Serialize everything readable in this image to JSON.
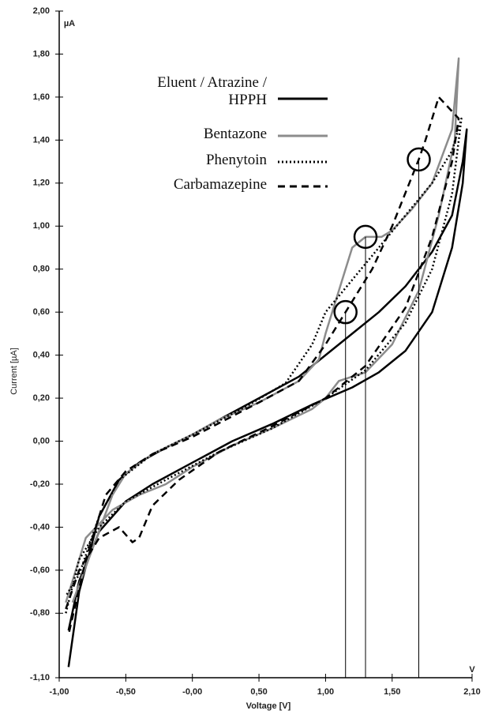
{
  "chart_data": {
    "type": "line",
    "xlabel": "Voltage [V]",
    "ylabel": "Current [µA]",
    "x_unit": "V",
    "y_unit": "µA",
    "xlim": [
      -1.0,
      2.1
    ],
    "ylim": [
      -1.1,
      2.0
    ],
    "xticks": [
      {
        "value": -1.0,
        "label": "-1,00"
      },
      {
        "value": -0.5,
        "label": "-0,50"
      },
      {
        "value": 0,
        "label": "-0,00"
      },
      {
        "value": 0.5,
        "label": "0,50"
      },
      {
        "value": 1.0,
        "label": "1,00"
      },
      {
        "value": 1.5,
        "label": "1,50"
      },
      {
        "value": 2.1,
        "label": "2,10"
      }
    ],
    "yticks": [
      {
        "value": -1.1,
        "label": "-1,10"
      },
      {
        "value": -0.8,
        "label": "-0,80"
      },
      {
        "value": -0.6,
        "label": "-0,60"
      },
      {
        "value": -0.4,
        "label": "-0,40"
      },
      {
        "value": -0.2,
        "label": "-0,20"
      },
      {
        "value": 0,
        "label": "0,00"
      },
      {
        "value": 0.2,
        "label": "0,20"
      },
      {
        "value": 0.4,
        "label": "0,40"
      },
      {
        "value": 0.6,
        "label": "0,60"
      },
      {
        "value": 0.8,
        "label": "0,80"
      },
      {
        "value": 1.0,
        "label": "1,00"
      },
      {
        "value": 1.2,
        "label": "1,20"
      },
      {
        "value": 1.4,
        "label": "1,40"
      },
      {
        "value": 1.6,
        "label": "1,60"
      },
      {
        "value": 1.8,
        "label": "1,80"
      },
      {
        "value": 2.0,
        "label": "2,00"
      }
    ],
    "series": [
      {
        "name": "Eluent / Atrazine / HPPH",
        "color": "#000000",
        "dash": "solid",
        "x": [
          -0.93,
          -0.85,
          -0.7,
          -0.5,
          -0.3,
          0,
          0.3,
          0.6,
          0.9,
          1.2,
          1.4,
          1.6,
          1.8,
          1.95,
          2.03,
          2.06,
          2.03,
          1.95,
          1.8,
          1.6,
          1.4,
          1.2,
          1.0,
          0.8,
          0.5,
          0.2,
          0,
          -0.2,
          -0.4,
          -0.55,
          -0.7,
          -0.85,
          -0.93
        ],
        "values": [
          -0.88,
          -0.65,
          -0.42,
          -0.28,
          -0.2,
          -0.1,
          0.0,
          0.08,
          0.17,
          0.25,
          0.32,
          0.42,
          0.6,
          0.9,
          1.2,
          1.45,
          1.3,
          1.05,
          0.88,
          0.72,
          0.6,
          0.5,
          0.4,
          0.3,
          0.2,
          0.1,
          0.03,
          -0.03,
          -0.1,
          -0.18,
          -0.35,
          -0.7,
          -1.05
        ]
      },
      {
        "name": "Bentazone",
        "color": "#8c8c8c",
        "dash": "solid",
        "x": [
          -0.95,
          -0.8,
          -0.6,
          -0.4,
          -0.2,
          0,
          0.3,
          0.6,
          0.9,
          1.0,
          1.1,
          1.2,
          1.3,
          1.5,
          1.7,
          1.85,
          1.97,
          2.0,
          1.95,
          1.8,
          1.65,
          1.5,
          1.42,
          1.3,
          1.2,
          1.1,
          1.0,
          0.95,
          0.8,
          0.5,
          0.2,
          0,
          -0.3,
          -0.5,
          -0.6,
          -0.75,
          -0.9
        ],
        "values": [
          -0.75,
          -0.45,
          -0.32,
          -0.25,
          -0.2,
          -0.12,
          -0.02,
          0.06,
          0.15,
          0.2,
          0.28,
          0.3,
          0.32,
          0.45,
          0.7,
          1.05,
          1.4,
          1.78,
          1.45,
          1.2,
          1.08,
          0.98,
          0.95,
          0.95,
          0.9,
          0.7,
          0.5,
          0.38,
          0.28,
          0.18,
          0.1,
          0.03,
          -0.06,
          -0.15,
          -0.25,
          -0.5,
          -0.75
        ]
      },
      {
        "name": "Phenytoin",
        "color": "#000000",
        "dash": "dotted",
        "x": [
          -0.95,
          -0.85,
          -0.7,
          -0.5,
          -0.2,
          0.2,
          0.6,
          1.0,
          1.3,
          1.6,
          1.8,
          1.95,
          2.02,
          1.95,
          1.8,
          1.6,
          1.4,
          1.2,
          1.0,
          0.9,
          0.7,
          0.4,
          0,
          -0.3,
          -0.55,
          -0.7,
          -0.85,
          -0.95
        ],
        "values": [
          -0.8,
          -0.55,
          -0.4,
          -0.28,
          -0.18,
          -0.05,
          0.06,
          0.2,
          0.33,
          0.55,
          0.8,
          1.15,
          1.5,
          1.35,
          1.2,
          1.05,
          0.9,
          0.75,
          0.6,
          0.45,
          0.27,
          0.16,
          0.03,
          -0.06,
          -0.18,
          -0.35,
          -0.62,
          -0.72
        ]
      },
      {
        "name": "Carbamazepine",
        "color": "#000000",
        "dash": "dashed",
        "x": [
          -0.95,
          -0.85,
          -0.7,
          -0.55,
          -0.45,
          -0.4,
          -0.3,
          -0.1,
          0.2,
          0.6,
          1.0,
          1.3,
          1.6,
          1.8,
          1.95,
          2.0,
          1.85,
          1.75,
          1.7,
          1.5,
          1.35,
          1.2,
          1.0,
          0.8,
          0.5,
          0,
          -0.3,
          -0.5,
          -0.65,
          -0.8,
          -0.93
        ],
        "values": [
          -0.78,
          -0.6,
          -0.45,
          -0.4,
          -0.47,
          -0.45,
          -0.3,
          -0.18,
          -0.05,
          0.07,
          0.2,
          0.35,
          0.62,
          0.95,
          1.3,
          1.5,
          1.6,
          1.4,
          1.31,
          1.0,
          0.8,
          0.65,
          0.45,
          0.28,
          0.18,
          0.02,
          -0.06,
          -0.14,
          -0.25,
          -0.55,
          -0.9
        ]
      }
    ],
    "annotations": [
      {
        "x": 1.15,
        "y": 0.6
      },
      {
        "x": 1.3,
        "y": 0.95
      },
      {
        "x": 1.7,
        "y": 1.31
      }
    ]
  }
}
